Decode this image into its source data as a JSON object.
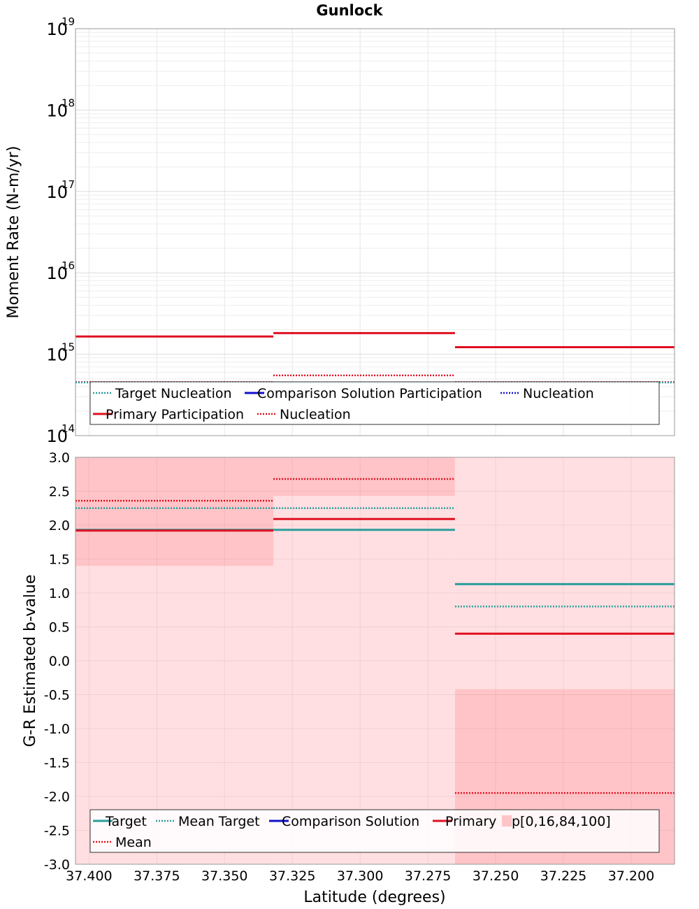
{
  "title": "Gunlock",
  "xlabel": "Latitude (degrees)",
  "colors": {
    "target": "#2a9d9d",
    "comparison": "#1010cc",
    "primary": "#e01020",
    "band_light": "#ffdfe1",
    "band_dark": "#ffc4c7",
    "grid": "#e6e6e6"
  },
  "chart_data": [
    {
      "type": "line",
      "name": "moment-rate",
      "ylabel": "Moment Rate (N-m/yr)",
      "yscale": "log",
      "ylim": [
        100000000000000.0,
        1e+19
      ],
      "xlim": [
        37.405,
        37.184
      ],
      "xlim_reversed": true,
      "y_ticks": [
        {
          "base": "10",
          "exp": "14"
        },
        {
          "base": "10",
          "exp": "15"
        },
        {
          "base": "10",
          "exp": "16"
        },
        {
          "base": "10",
          "exp": "17"
        },
        {
          "base": "10",
          "exp": "18"
        },
        {
          "base": "10",
          "exp": "19"
        }
      ],
      "grid": true,
      "legend_position": "bottom",
      "legend": [
        {
          "label": "Target Nucleation",
          "color": "#2a9d9d",
          "style": "dotted"
        },
        {
          "label": "Comparison Solution Participation",
          "color": "#1010cc",
          "style": "solid"
        },
        {
          "label": "Nucleation",
          "color": "#1010cc",
          "style": "dotted"
        },
        {
          "label": "Primary Participation",
          "color": "#e01020",
          "style": "solid"
        },
        {
          "label": "Nucleation",
          "color": "#e01020",
          "style": "dotted"
        }
      ],
      "series": [
        {
          "key": "primary_participation",
          "color": "#e01020",
          "style": "solid",
          "segments": [
            [
              37.405,
              37.332,
              1650000000000000.0
            ],
            [
              37.332,
              37.265,
              1820000000000000.0
            ],
            [
              37.265,
              37.184,
              1220000000000000.0
            ]
          ]
        },
        {
          "key": "primary_nucleation",
          "color": "#e01020",
          "style": "dotted",
          "segments": [
            [
              37.405,
              37.332,
              455000000000000.0
            ],
            [
              37.332,
              37.265,
              550000000000000.0
            ],
            [
              37.265,
              37.184,
              455000000000000.0
            ]
          ]
        },
        {
          "key": "target_nucleation",
          "color": "#2a9d9d",
          "style": "dotted",
          "segments": [
            [
              37.405,
              37.332,
              450000000000000.0
            ],
            [
              37.332,
              37.265,
              450000000000000.0
            ],
            [
              37.265,
              37.184,
              450000000000000.0
            ]
          ]
        }
      ]
    },
    {
      "type": "line",
      "name": "b-value",
      "ylabel": "G-R Estimated b-value",
      "ylim": [
        -3.0,
        3.0
      ],
      "xlim": [
        37.405,
        37.184
      ],
      "xlim_reversed": true,
      "y_ticks": [
        "3.0",
        "2.5",
        "2.0",
        "1.5",
        "1.0",
        "0.5",
        "0.0",
        "-0.5",
        "-1.0",
        "-1.5",
        "-2.0",
        "-2.5",
        "-3.0"
      ],
      "x_ticks": [
        "37.400",
        "37.375",
        "37.350",
        "37.325",
        "37.300",
        "37.275",
        "37.250",
        "37.225",
        "37.200"
      ],
      "grid": true,
      "legend_position": "bottom",
      "legend": [
        {
          "label": "Target",
          "color": "#2a9d9d",
          "style": "solid"
        },
        {
          "label": "Mean Target",
          "color": "#2a9d9d",
          "style": "dotted"
        },
        {
          "label": "Comparison Solution",
          "color": "#1010cc",
          "style": "solid"
        },
        {
          "label": "Primary",
          "color": "#e01020",
          "style": "solid"
        },
        {
          "label": "p[0,16,84,100]",
          "color": "#ffc4c7",
          "style": "box"
        },
        {
          "label": "Mean",
          "color": "#e01020",
          "style": "dotted"
        }
      ],
      "bands": [
        {
          "x0": 37.405,
          "x1": 37.332,
          "p0": -3.0,
          "p16": 1.4,
          "p84": 3.0,
          "p100": 3.0
        },
        {
          "x0": 37.332,
          "x1": 37.265,
          "p0": -3.0,
          "p16": 2.43,
          "p84": 3.0,
          "p100": 3.0
        },
        {
          "x0": 37.265,
          "x1": 37.184,
          "p0": -3.0,
          "p16": -3.0,
          "p84": -0.42,
          "p100": 3.0
        }
      ],
      "series": [
        {
          "key": "target",
          "color": "#2a9d9d",
          "style": "solid",
          "segments": [
            [
              37.405,
              37.332,
              1.93
            ],
            [
              37.332,
              37.265,
              1.93
            ],
            [
              37.265,
              37.184,
              1.13
            ]
          ]
        },
        {
          "key": "mean_target",
          "color": "#2a9d9d",
          "style": "dotted",
          "segments": [
            [
              37.405,
              37.332,
              2.25
            ],
            [
              37.332,
              37.265,
              2.25
            ],
            [
              37.265,
              37.184,
              0.8
            ]
          ]
        },
        {
          "key": "primary",
          "color": "#e01020",
          "style": "solid",
          "segments": [
            [
              37.405,
              37.332,
              1.92
            ],
            [
              37.332,
              37.265,
              2.09
            ],
            [
              37.265,
              37.184,
              0.4
            ]
          ]
        },
        {
          "key": "mean",
          "color": "#e01020",
          "style": "dotted",
          "segments": [
            [
              37.405,
              37.332,
              2.36
            ],
            [
              37.332,
              37.265,
              2.68
            ],
            [
              37.265,
              37.184,
              -1.95
            ]
          ]
        }
      ]
    }
  ]
}
